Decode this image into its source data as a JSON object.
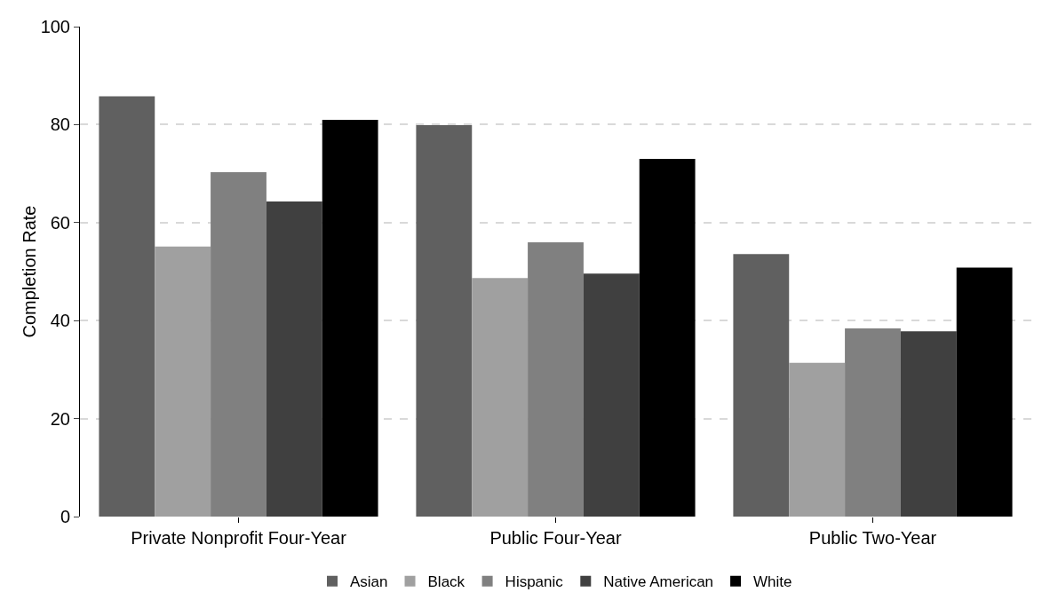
{
  "chart_data": {
    "type": "bar",
    "ylabel": "Completion Rate",
    "categories": [
      "Private Nonprofit Four-Year",
      "Public Four-Year",
      "Public Two-Year"
    ],
    "series": [
      {
        "name": "Asian",
        "color": "#606060",
        "values": [
          85.8,
          79.9,
          53.6
        ]
      },
      {
        "name": "Black",
        "color": "#a0a0a0",
        "values": [
          55.1,
          48.7,
          31.4
        ]
      },
      {
        "name": "Hispanic",
        "color": "#808080",
        "values": [
          70.3,
          56.0,
          38.4
        ]
      },
      {
        "name": "Native American",
        "color": "#404040",
        "values": [
          64.3,
          49.6,
          37.8
        ]
      },
      {
        "name": "White",
        "color": "#000000",
        "values": [
          81.0,
          73.0,
          50.8
        ]
      }
    ],
    "ylim": [
      0,
      100
    ],
    "yticks": [
      0,
      20,
      40,
      60,
      80,
      100
    ],
    "grid": "y",
    "legend": "bottom"
  }
}
